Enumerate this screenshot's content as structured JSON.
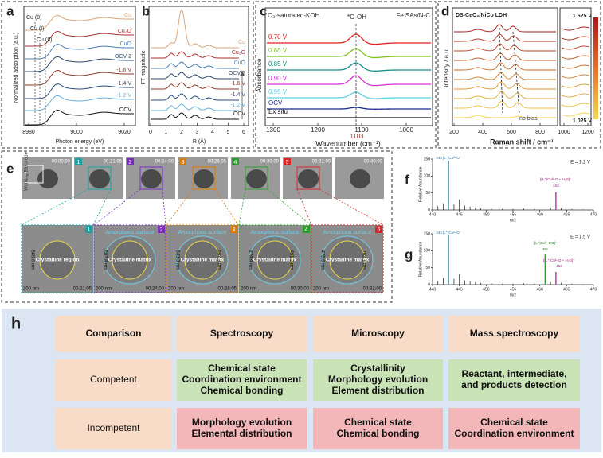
{
  "a": {
    "label": "a",
    "curves": [
      "Cu",
      "Cu₂O",
      "CuO",
      "OCV-2",
      "-1.6 V",
      "-1.4 V",
      "-1.2 V",
      "OCV"
    ],
    "annotations": [
      "Cu (0)",
      "Cu (I)",
      "Cu (II)"
    ],
    "ylabel": "Normalized adsorption (a.u.)",
    "xticks": [
      "8980",
      "9000",
      "9020"
    ],
    "xlabel": "Photon energy (eV)"
  },
  "b": {
    "label": "b",
    "curves": [
      "Cu",
      "Cu₂O",
      "CuO",
      "OCV-2",
      "-1.6 V",
      "-1.4 V",
      "-1.2 V",
      "OCV"
    ],
    "ylabel": "FT magnitude",
    "xticks": [
      "0",
      "1",
      "2",
      "3",
      "4",
      "5",
      "6"
    ],
    "xlabel": "R (Å)"
  },
  "c": {
    "label": "c",
    "electrolyte": "O₂-saturated-KOH",
    "catalyst": "Fe SAs/N-C",
    "peak": "*O-OH",
    "curves": [
      "0.70 V",
      "0.80 V",
      "0.85 V",
      "0.90 V",
      "0.95 V",
      "OCV",
      "Ex situ"
    ],
    "peak_position": "1103",
    "ylabel": "Absorbance",
    "xticks": [
      "1300",
      "1200",
      "1100",
      "1000"
    ],
    "xlabel": "Wavenumber (cm⁻¹)"
  },
  "d": {
    "label": "d",
    "title": "DS-CeO₂/NiCo LDH",
    "colorbar_max": "1.625 V",
    "colorbar_min": "1.025 V",
    "bottom_curve": "no bias",
    "ylabel": "Intensity / a.u.",
    "xticks": [
      "200",
      "400",
      "600",
      "800",
      "1000",
      "1200"
    ],
    "xlabel": "Raman shift / cm⁻¹"
  },
  "e": {
    "label": "e",
    "side_label": "Working Electrode",
    "frames": [
      "00:00:00",
      "00:21:05",
      "00:24:00",
      "00:26:05",
      "00:30:00",
      "00:32:00",
      "00:40:00"
    ],
    "zooms": [
      {
        "number": "1",
        "time": "00:21:05",
        "region": "Crystalline region",
        "dims": [
          "565.6 nm"
        ],
        "scale": "200 nm"
      },
      {
        "number": "2",
        "time": "00:24:00",
        "surface": "Amorphous surface",
        "region": "Crystalline matrix",
        "dims": [
          "582.8 nm"
        ],
        "scale": "200 nm"
      },
      {
        "number": "3",
        "time": "00:26:05",
        "surface": "Amorphous surface",
        "region": "Crystalline matrix",
        "dims": [
          "543.3 nm",
          "597.3 nm"
        ],
        "scale": "200 nm"
      },
      {
        "number": "4",
        "time": "00:30:00",
        "surface": "Amorphous surface",
        "region": "Crystalline matrix",
        "dims": [
          "478.8 nm",
          "461.2 nm"
        ],
        "scale": "200 nm"
      },
      {
        "number": "5",
        "time": "00:32:00",
        "surface": "Amorphous surface",
        "region": "Crystalline matrix",
        "dims": [
          "476.9 nm",
          "702.1 nm"
        ],
        "scale": "200 nm"
      }
    ]
  },
  "f": {
    "label": "f",
    "potential": "E = 1.2 V",
    "peaks": [
      "443 [L⁺]Cuᴵᴵ–O⁻",
      "[(L⁺)Cuᴵᴵ–O + H₂O]⁻",
      "463"
    ],
    "ylabel": "Relative Abundance",
    "xlabel": "m/z",
    "yticks": [
      "150",
      "100",
      "50",
      "0"
    ],
    "xticks": [
      "440",
      "445",
      "450",
      "455",
      "460",
      "465",
      "470"
    ]
  },
  "g": {
    "label": "g",
    "potential": "E = 1.5 V",
    "peaks": [
      "443 [L⁺]Cuᴵᴵ–O⁻",
      "[(L⁺)Cuᴵᴵ–OO]⁻",
      "461",
      "[(L⁺)Cuᴵᴵ–O + H₂O]⁻",
      "463"
    ],
    "ylabel": "Relative Abundance",
    "xlabel": "m/z",
    "yticks": [
      "150",
      "100",
      "50",
      "0"
    ],
    "xticks": [
      "440",
      "445",
      "450",
      "455",
      "460",
      "465",
      "470"
    ]
  },
  "table": {
    "label": "h",
    "header": [
      "Comparison",
      "Spectroscopy",
      "Microscopy",
      "Mass spectroscopy"
    ],
    "rows": [
      [
        [
          "Competent"
        ],
        [
          "Chemical state",
          "Coordination environment",
          "Chemical bonding"
        ],
        [
          "Crystallinity",
          "Morphology evolution",
          "Element distribution"
        ],
        [
          "Reactant, intermediate,",
          "and products detection"
        ]
      ],
      [
        [
          "Incompetent"
        ],
        [
          "Morphology evolution",
          "Elemental distribution"
        ],
        [
          "Chemical state",
          "Chemical bonding"
        ],
        [
          "Chemical state",
          "Coordination environment"
        ]
      ]
    ]
  }
}
